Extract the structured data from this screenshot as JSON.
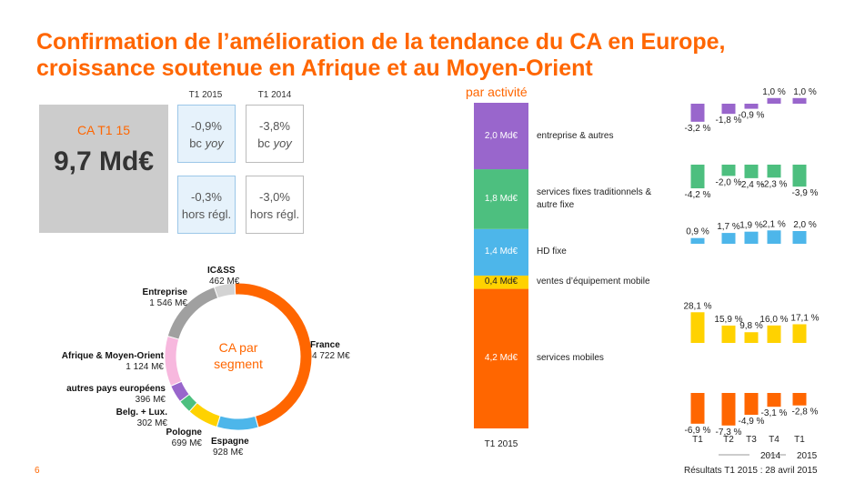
{
  "header": {
    "title_line1": "Confirmation de l’amélioration de la tendance du CA en Europe,",
    "title_line2": "croissance soutenue en Afrique et au Moyen-Orient"
  },
  "kpi": {
    "label": "CA T1 15",
    "value": "9,7 Md€",
    "col_t1_2015": "T1 2015",
    "col_t1_2014": "T1 2014",
    "cells": {
      "r1c1_v": "-0,9%",
      "r1c1_a": "bc",
      "r1c1_b": "yoy",
      "r1c2_v": "-3,8%",
      "r1c2_a": "bc",
      "r1c2_b": "yoy",
      "r2c1_v": "-0,3%",
      "r2c1_b": "hors régl.",
      "r2c2_v": "-3,0%",
      "r2c2_b": "hors régl."
    }
  },
  "colors": {
    "orange": "#ff6600",
    "purple": "#9966cc",
    "green": "#4dbf7f",
    "blue": "#4db6ea",
    "yellow": "#ffd200",
    "gray": "#a0a0a0",
    "pink": "#f7b8de"
  },
  "chart_data": [
    {
      "type": "pie",
      "variant": "donut",
      "center_label": [
        "CA par",
        "segment"
      ],
      "unit": "M€",
      "slices": [
        {
          "name": "France",
          "value": 4722,
          "value_label": "4 722 M€",
          "color": "#ff6600"
        },
        {
          "name": "Espagne",
          "value": 928,
          "value_label": "928 M€",
          "color": "#4db6ea"
        },
        {
          "name": "Pologne",
          "value": 699,
          "value_label": "699 M€",
          "color": "#ffd200"
        },
        {
          "name": "Belg. + Lux.",
          "value": 302,
          "value_label": "302 M€",
          "color": "#4dbf7f"
        },
        {
          "name": "autres pays européens",
          "value": 396,
          "value_label": "396 M€",
          "color": "#9966cc"
        },
        {
          "name": "Afrique & Moyen-Orient",
          "value": 1124,
          "value_label": "1 124 M€",
          "color": "#f7b8de"
        },
        {
          "name": "Entreprise",
          "value": 1546,
          "value_label": "1 546 M€",
          "color": "#a0a0a0"
        },
        {
          "name": "IC&SS",
          "value": 462,
          "value_label": "462 M€",
          "color": "#d3d3d3"
        }
      ]
    },
    {
      "type": "bar",
      "variant": "stacked",
      "title": "par activité",
      "categories": [
        "T1 2015"
      ],
      "series": [
        {
          "name": "services mobiles",
          "value": 4.2,
          "value_label": "4,2 Md€",
          "color": "#ff6600"
        },
        {
          "name": "ventes d’équipement mobile",
          "value": 0.4,
          "value_label": "0,4 Md€",
          "color": "#ffd200"
        },
        {
          "name": "HD fixe",
          "value": 1.4,
          "value_label": "1,4 Md€",
          "color": "#4db6ea"
        },
        {
          "name": "services fixes traditionnels & autre fixe",
          "value": 1.8,
          "value_label": "1,8 Md€",
          "color": "#4dbf7f"
        },
        {
          "name": "entreprise & autres",
          "value": 2.0,
          "value_label": "2,0 Md€",
          "color": "#9966cc"
        }
      ]
    },
    {
      "type": "bar",
      "variant": "small-multiples",
      "categories": [
        "T1",
        "T2",
        "T3",
        "T4",
        "T1"
      ],
      "year_labels": [
        {
          "label": "2014"
        },
        {
          "label": "2015"
        }
      ],
      "unit": "%",
      "series": [
        {
          "ref": "entreprise & autres",
          "values": [
            -3.2,
            -1.8,
            -0.9,
            1.0,
            1.0
          ],
          "labels": [
            "-3,2 %",
            "-1,8 %",
            "-0,9 %",
            "1,0 %",
            "1,0 %"
          ],
          "color": "#9966cc"
        },
        {
          "ref": "services fixes traditionnels & autre fixe",
          "values": [
            -4.2,
            -2.0,
            -2.4,
            -2.3,
            -3.9
          ],
          "labels": [
            "-4,2 %",
            "-2,0 %",
            "-2,4 %",
            "-2,3 %",
            "-3,9 %"
          ],
          "color": "#4dbf7f"
        },
        {
          "ref": "HD fixe",
          "values": [
            0.9,
            1.7,
            1.9,
            2.1,
            2.0
          ],
          "labels": [
            "0,9 %",
            "1,7 %",
            "1,9 %",
            "2,1 %",
            "2,0 %"
          ],
          "color": "#4db6ea"
        },
        {
          "ref": "ventes d’équipement mobile",
          "values": [
            28.1,
            15.9,
            9.8,
            16.0,
            17.1
          ],
          "labels": [
            "28,1 %",
            "15,9 %",
            "9,8 %",
            "16,0 %",
            "17,1 %"
          ],
          "color": "#ffd200"
        },
        {
          "ref": "services mobiles",
          "values": [
            -6.9,
            -7.3,
            -4.9,
            -3.1,
            -2.8
          ],
          "labels": [
            "-6,9 %",
            "-7,3 %",
            "-4,9 %",
            "-3,1 %",
            "-2,8 %"
          ],
          "color": "#ff6600"
        }
      ]
    }
  ],
  "footer": {
    "page": "6",
    "note": "Résultats T1 2015 : 28 avril 2015",
    "stack_x": "T1 2015"
  }
}
